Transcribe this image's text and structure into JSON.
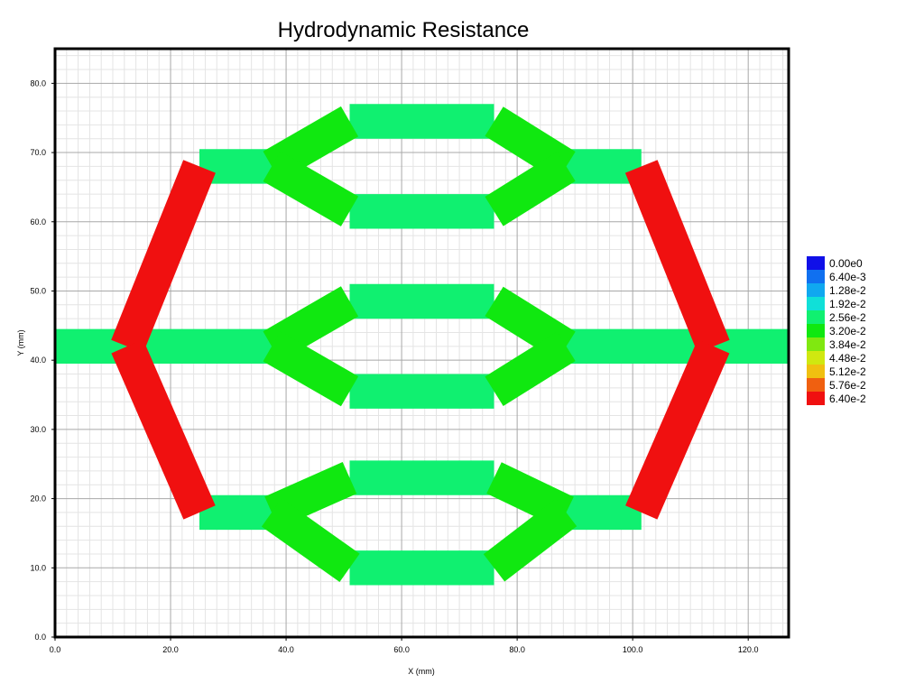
{
  "chart_data": {
    "type": "heatmap",
    "title": "Hydrodynamic Resistance",
    "xlabel": "X (mm)",
    "ylabel": "Y (mm)",
    "xlim": [
      0,
      127
    ],
    "ylim": [
      0,
      85
    ],
    "xticks": [
      "0.0",
      "20.0",
      "40.0",
      "60.0",
      "80.0",
      "100.0",
      "120.0"
    ],
    "yticks": [
      "0.0",
      "10.0",
      "20.0",
      "30.0",
      "40.0",
      "50.0",
      "60.0",
      "70.0",
      "80.0"
    ],
    "grid": true,
    "legend_position": "right",
    "legend": [
      {
        "label": "0.00e0",
        "color": "#1010e8"
      },
      {
        "label": "6.40e-3",
        "color": "#1070f0"
      },
      {
        "label": "1.28e-2",
        "color": "#10a8f0"
      },
      {
        "label": "1.92e-2",
        "color": "#10e0d8"
      },
      {
        "label": "2.56e-2",
        "color": "#10f070"
      },
      {
        "label": "3.20e-2",
        "color": "#10e810"
      },
      {
        "label": "3.84e-2",
        "color": "#80e810"
      },
      {
        "label": "4.48e-2",
        "color": "#d0e810"
      },
      {
        "label": "5.12e-2",
        "color": "#f0c010"
      },
      {
        "label": "5.76e-2",
        "color": "#f06010"
      },
      {
        "label": "6.40e-2",
        "color": "#f01010"
      }
    ],
    "channels": [
      {
        "x1": 0,
        "y1": 42,
        "x2": 12.5,
        "y2": 42,
        "width": 6,
        "value": 0.0256
      },
      {
        "x1": 114,
        "y1": 42,
        "x2": 127,
        "y2": 42,
        "width": 6,
        "value": 0.0256
      },
      {
        "x1": 12.5,
        "y1": 42,
        "x2": 37.5,
        "y2": 42,
        "width": 6,
        "value": 0.0256
      },
      {
        "x1": 88.5,
        "y1": 42,
        "x2": 114,
        "y2": 42,
        "width": 6,
        "value": 0.0256
      },
      {
        "x1": 25,
        "y1": 68,
        "x2": 37.5,
        "y2": 68,
        "width": 6,
        "value": 0.0256
      },
      {
        "x1": 88.5,
        "y1": 68,
        "x2": 101.5,
        "y2": 68,
        "width": 6,
        "value": 0.0256
      },
      {
        "x1": 25,
        "y1": 18,
        "x2": 37.5,
        "y2": 18,
        "width": 6,
        "value": 0.0256
      },
      {
        "x1": 88.5,
        "y1": 18,
        "x2": 101.5,
        "y2": 18,
        "width": 6,
        "value": 0.0256
      },
      {
        "x1": 51,
        "y1": 74.5,
        "x2": 76,
        "y2": 74.5,
        "width": 6,
        "value": 0.0256
      },
      {
        "x1": 51,
        "y1": 61.5,
        "x2": 76,
        "y2": 61.5,
        "width": 6,
        "value": 0.0256
      },
      {
        "x1": 51,
        "y1": 48.5,
        "x2": 76,
        "y2": 48.5,
        "width": 6,
        "value": 0.0256
      },
      {
        "x1": 51,
        "y1": 35.5,
        "x2": 76,
        "y2": 35.5,
        "width": 6,
        "value": 0.0256
      },
      {
        "x1": 51,
        "y1": 23,
        "x2": 76,
        "y2": 23,
        "width": 6,
        "value": 0.0256
      },
      {
        "x1": 51,
        "y1": 10,
        "x2": 76,
        "y2": 10,
        "width": 6,
        "value": 0.0256
      },
      {
        "x1": 37.5,
        "y1": 68,
        "x2": 51,
        "y2": 74.5,
        "width": 6,
        "value": 0.032
      },
      {
        "x1": 37.5,
        "y1": 68,
        "x2": 51,
        "y2": 61.5,
        "width": 6,
        "value": 0.032
      },
      {
        "x1": 76,
        "y1": 74.5,
        "x2": 88.5,
        "y2": 68,
        "width": 6,
        "value": 0.032
      },
      {
        "x1": 76,
        "y1": 61.5,
        "x2": 88.5,
        "y2": 68,
        "width": 6,
        "value": 0.032
      },
      {
        "x1": 37.5,
        "y1": 42,
        "x2": 51,
        "y2": 48.5,
        "width": 6,
        "value": 0.032
      },
      {
        "x1": 37.5,
        "y1": 42,
        "x2": 51,
        "y2": 35.5,
        "width": 6,
        "value": 0.032
      },
      {
        "x1": 76,
        "y1": 48.5,
        "x2": 88.5,
        "y2": 42,
        "width": 6,
        "value": 0.032
      },
      {
        "x1": 76,
        "y1": 35.5,
        "x2": 88.5,
        "y2": 42,
        "width": 6,
        "value": 0.032
      },
      {
        "x1": 37.5,
        "y1": 18,
        "x2": 51,
        "y2": 23,
        "width": 6,
        "value": 0.032
      },
      {
        "x1": 37.5,
        "y1": 18,
        "x2": 51,
        "y2": 10,
        "width": 6,
        "value": 0.032
      },
      {
        "x1": 76,
        "y1": 23,
        "x2": 88.5,
        "y2": 18,
        "width": 6,
        "value": 0.032
      },
      {
        "x1": 76,
        "y1": 10,
        "x2": 88.5,
        "y2": 18,
        "width": 6,
        "value": 0.032
      },
      {
        "x1": 12.5,
        "y1": 42,
        "x2": 25,
        "y2": 68,
        "width": 6,
        "value": 0.064
      },
      {
        "x1": 12.5,
        "y1": 42,
        "x2": 25,
        "y2": 18,
        "width": 6,
        "value": 0.064
      },
      {
        "x1": 101.5,
        "y1": 68,
        "x2": 114,
        "y2": 42,
        "width": 6,
        "value": 0.064
      },
      {
        "x1": 101.5,
        "y1": 18,
        "x2": 114,
        "y2": 42,
        "width": 6,
        "value": 0.064
      }
    ]
  }
}
